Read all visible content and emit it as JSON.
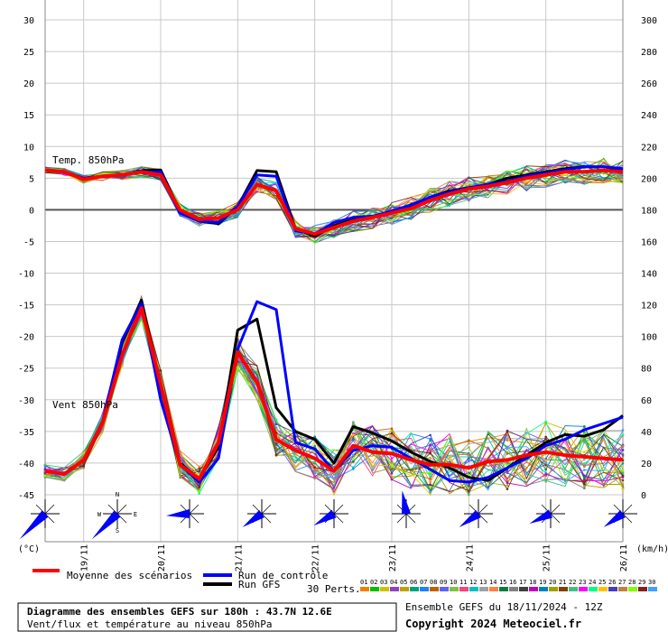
{
  "chart_data": {
    "type": "line",
    "left_axis": {
      "label": "(°C)",
      "ticks": [
        30,
        25,
        20,
        15,
        10,
        5,
        0,
        -5,
        -10,
        -15,
        -20,
        -25,
        -30,
        -35,
        -40,
        -45
      ],
      "range": [
        -45,
        30
      ]
    },
    "right_axis": {
      "label": "(km/h)",
      "ticks": [
        300,
        280,
        260,
        240,
        220,
        200,
        180,
        160,
        140,
        120,
        100,
        80,
        60,
        40,
        20,
        0
      ],
      "range": [
        0,
        300
      ]
    },
    "x_labels": [
      "19/11",
      "20/11",
      "21/11",
      "22/11",
      "23/11",
      "24/11",
      "25/11",
      "26/11"
    ],
    "x_hours": [
      0,
      6,
      12,
      18,
      24,
      30,
      36,
      42,
      48,
      54,
      60,
      66,
      72,
      78,
      84,
      90,
      96,
      102,
      108,
      114,
      120,
      126,
      132,
      138,
      144,
      150,
      156,
      162,
      168,
      174,
      180
    ],
    "panel_labels": [
      "Temp. 850hPa",
      "Vent 850hPa"
    ],
    "temperature": {
      "mean": [
        6.3,
        6.0,
        4.8,
        5.3,
        5.5,
        6.0,
        5.5,
        0.0,
        -1.5,
        -1.3,
        0.0,
        4.0,
        3.0,
        -3.0,
        -3.8,
        -2.8,
        -1.8,
        -1.2,
        -0.5,
        0.2,
        1.5,
        2.5,
        3.3,
        3.7,
        4.3,
        5.0,
        5.5,
        6.0,
        6.0,
        6.2,
        6.0
      ],
      "control": [
        6.3,
        6.0,
        5.0,
        5.3,
        5.5,
        6.0,
        6.0,
        -0.5,
        -1.8,
        -2.0,
        0.5,
        5.5,
        5.3,
        -3.3,
        -3.8,
        -2.0,
        -1.2,
        -1.0,
        -0.2,
        0.8,
        2.0,
        2.8,
        3.5,
        4.0,
        4.5,
        5.3,
        5.8,
        6.3,
        6.8,
        6.8,
        6.5
      ],
      "gfs": [
        6.3,
        6.0,
        5.0,
        5.3,
        5.5,
        6.2,
        6.3,
        -0.2,
        -1.8,
        -2.2,
        0.5,
        6.2,
        6.0,
        -3.0,
        -4.2,
        -2.5,
        -1.5,
        -1.2,
        -0.3,
        0.5,
        2.0,
        3.0,
        3.5,
        4.0,
        5.0,
        5.5,
        6.0,
        6.5,
        6.8,
        6.8,
        6.3
      ]
    },
    "wind": {
      "mean": [
        15,
        13,
        22,
        46,
        88,
        118,
        70,
        19,
        10,
        33,
        90,
        71,
        35,
        28,
        23,
        15,
        31,
        27,
        26,
        22,
        19,
        19,
        17,
        21,
        22,
        25,
        27,
        25,
        24,
        23,
        22
      ],
      "control": [
        15,
        13,
        22,
        47,
        98,
        121,
        60,
        19,
        8,
        23,
        92,
        122,
        117,
        33,
        29,
        15,
        28,
        31,
        30,
        23,
        16,
        9,
        8,
        11,
        17,
        23,
        31,
        35,
        41,
        45,
        49
      ],
      "gfs": [
        15,
        13,
        22,
        47,
        96,
        123,
        68,
        20,
        10,
        30,
        104,
        111,
        55,
        40,
        35,
        20,
        43,
        39,
        34,
        27,
        21,
        17,
        11,
        9,
        17,
        25,
        33,
        38,
        37,
        41,
        50
      ]
    },
    "members": 30,
    "legend": {
      "mean": "Moyenne des scénarios",
      "control": "Run de contrôle",
      "gfs": "Run GFS",
      "perts": "30 Perts."
    },
    "colors": {
      "mean": "#ff0000",
      "control": "#0000ff",
      "gfs": "#000000",
      "zero_line": "#555555",
      "grid": "#c8c8c8",
      "wind_barb": "#0000ff",
      "members": [
        "#f08000",
        "#00c000",
        "#d0c000",
        "#9040c0",
        "#c0a000",
        "#00a080",
        "#2080ff",
        "#c06000",
        "#6060ff",
        "#80c040",
        "#ff4080",
        "#00c0c0",
        "#a0a0a0",
        "#ff8040",
        "#008040",
        "#808080",
        "#404040",
        "#c000c0",
        "#0080c0",
        "#a0a000",
        "#804000",
        "#40c080",
        "#ff00ff",
        "#00ff80",
        "#ffc000",
        "#4040c0",
        "#c08040",
        "#80ff00",
        "#802020",
        "#40a0ff"
      ]
    },
    "wind_rose": {
      "north": "N",
      "south": "S",
      "east": "E",
      "west": "W"
    }
  },
  "member_ids": [
    "01",
    "02",
    "03",
    "04",
    "05",
    "06",
    "07",
    "08",
    "09",
    "10",
    "11",
    "12",
    "13",
    "14",
    "15",
    "16",
    "17",
    "18",
    "19",
    "20",
    "21",
    "22",
    "23",
    "24",
    "25",
    "26",
    "27",
    "28",
    "29",
    "30"
  ],
  "footer": {
    "title": "Diagramme des ensembles GEFS sur 180h : 43.7N 12.6E",
    "subtitle": "Vent/flux et température au niveau 850hPa",
    "run_info": "Ensemble GEFS du 18/11/2024 - 12Z",
    "copyright": "Copyright 2024 Meteociel.fr"
  }
}
